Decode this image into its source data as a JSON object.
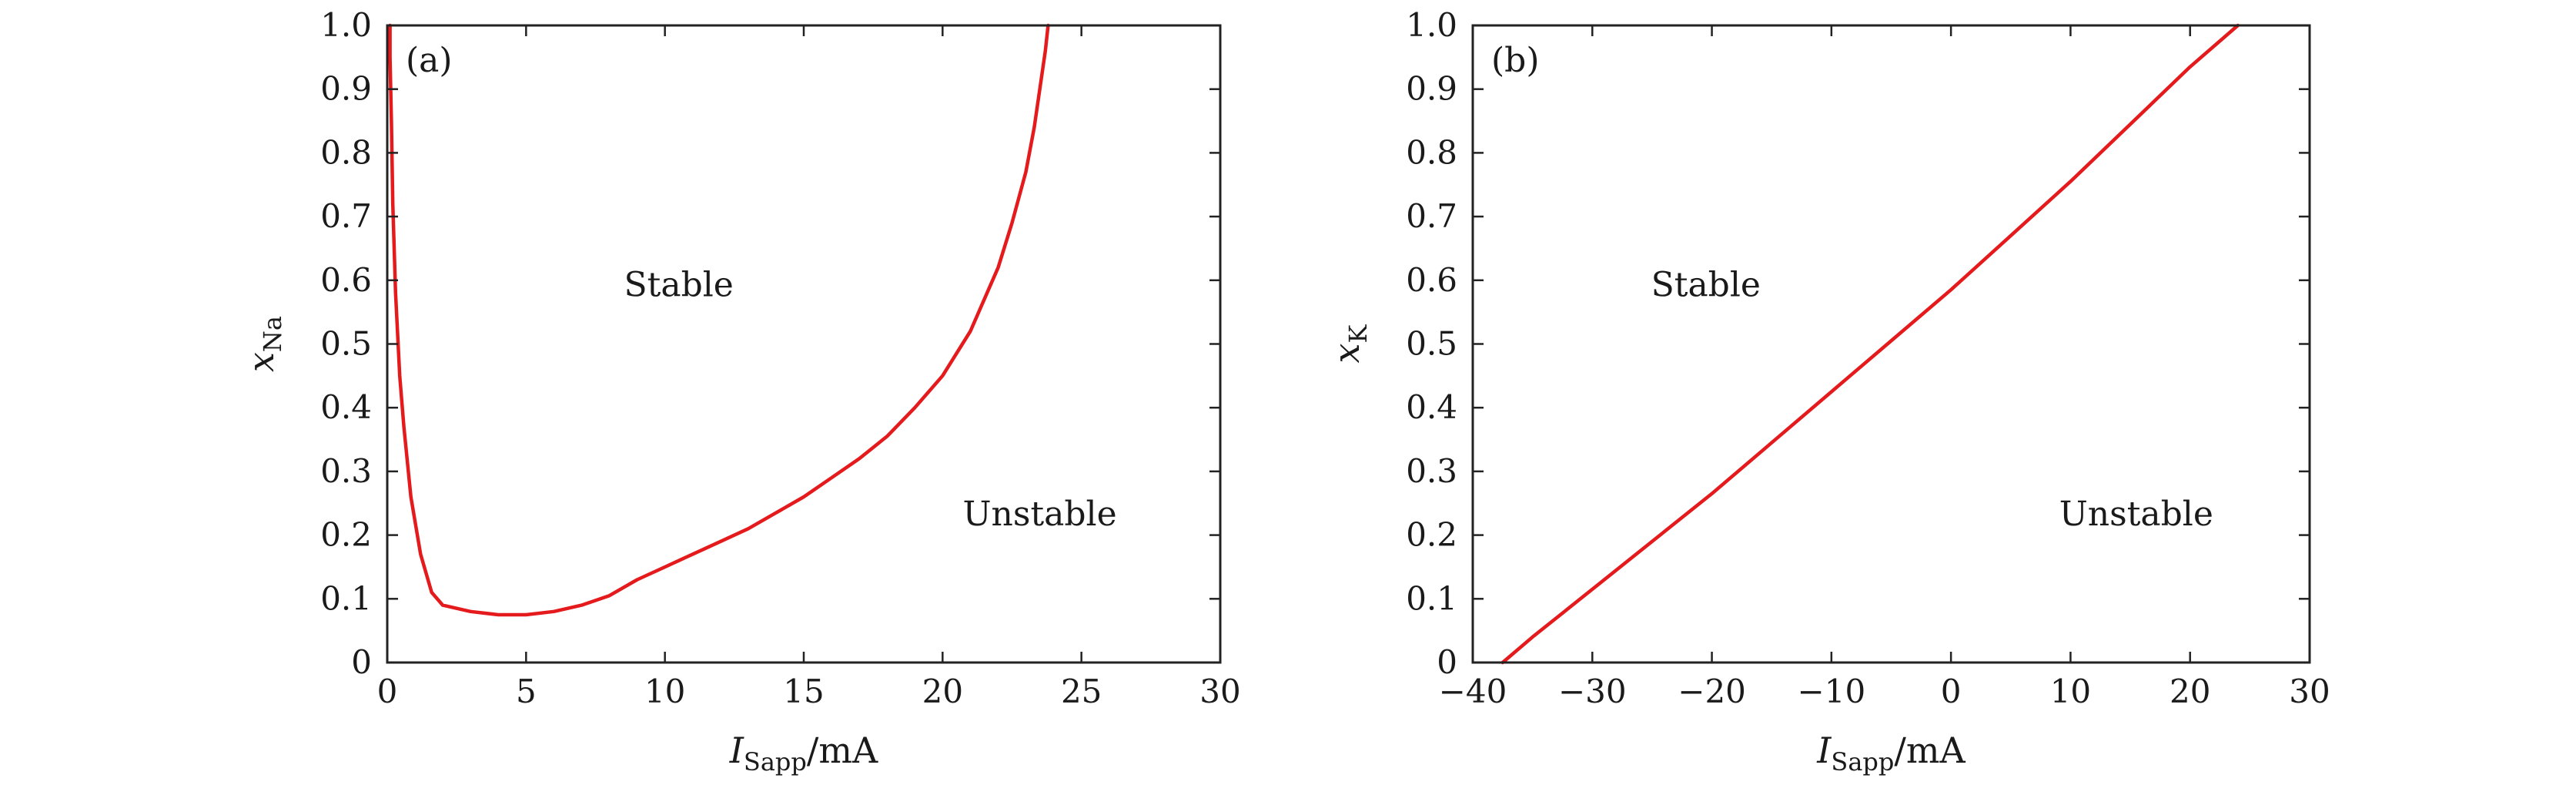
{
  "chart_data": [
    {
      "type": "line",
      "panel_label": "(a)",
      "xlim": [
        0,
        30
      ],
      "ylim": [
        0,
        1.0
      ],
      "xticks": [
        "0",
        "5",
        "10",
        "15",
        "20",
        "25",
        "30"
      ],
      "yticks": [
        "0",
        "0.1",
        "0.2",
        "0.3",
        "0.4",
        "0.5",
        "0.6",
        "0.7",
        "0.8",
        "0.9",
        "1.0"
      ],
      "xlabel": {
        "main": "I",
        "sub": "Sapp",
        "unit": "/mA"
      },
      "ylabel": {
        "main": "x",
        "sub": "Na"
      },
      "annotations": [
        {
          "text": "Stable",
          "x": 10.5,
          "y": 0.575
        },
        {
          "text": "Unstable",
          "x": 23.5,
          "y": 0.215
        }
      ],
      "series": [
        {
          "color": "#e41a1c",
          "x": [
            0.1,
            0.1,
            0.15,
            0.2,
            0.3,
            0.45,
            0.6,
            0.85,
            1.2,
            1.6,
            2.0,
            3.0,
            4.0,
            5.0,
            6.0,
            7.0,
            8.0,
            9.0,
            10.0,
            11.0,
            12.0,
            13.0,
            14.0,
            15.0,
            16.0,
            17.0,
            18.0,
            19.0,
            20.0,
            21.0,
            22.0,
            22.5,
            23.0,
            23.3,
            23.5,
            23.7,
            23.8
          ],
          "y": [
            1.0,
            0.95,
            0.85,
            0.72,
            0.58,
            0.45,
            0.37,
            0.26,
            0.17,
            0.11,
            0.09,
            0.08,
            0.075,
            0.075,
            0.08,
            0.09,
            0.105,
            0.13,
            0.15,
            0.17,
            0.19,
            0.21,
            0.235,
            0.26,
            0.29,
            0.32,
            0.355,
            0.4,
            0.45,
            0.52,
            0.62,
            0.69,
            0.77,
            0.84,
            0.9,
            0.96,
            1.0
          ]
        }
      ]
    },
    {
      "type": "line",
      "panel_label": "(b)",
      "xlim": [
        -40,
        30
      ],
      "ylim": [
        0,
        1.0
      ],
      "xticks": [
        "−40",
        "−30",
        "−20",
        "−10",
        "0",
        "10",
        "20",
        "30"
      ],
      "yticks": [
        "0",
        "0.1",
        "0.2",
        "0.3",
        "0.4",
        "0.5",
        "0.6",
        "0.7",
        "0.8",
        "0.9",
        "1.0"
      ],
      "xlabel": {
        "main": "I",
        "sub": "Sapp",
        "unit": "/mA"
      },
      "ylabel": {
        "main": "x",
        "sub": "K"
      },
      "annotations": [
        {
          "text": "Stable",
          "x": -20.5,
          "y": 0.575
        },
        {
          "text": "Unstable",
          "x": 15.5,
          "y": 0.215
        }
      ],
      "series": [
        {
          "color": "#e41a1c",
          "x": [
            -37.5,
            -35,
            -30,
            -25,
            -20,
            -15,
            -10,
            -5,
            0,
            5,
            10,
            15,
            20,
            24
          ],
          "y": [
            0.0,
            0.04,
            0.115,
            0.19,
            0.265,
            0.345,
            0.425,
            0.505,
            0.585,
            0.67,
            0.755,
            0.845,
            0.935,
            1.0
          ]
        }
      ]
    }
  ]
}
